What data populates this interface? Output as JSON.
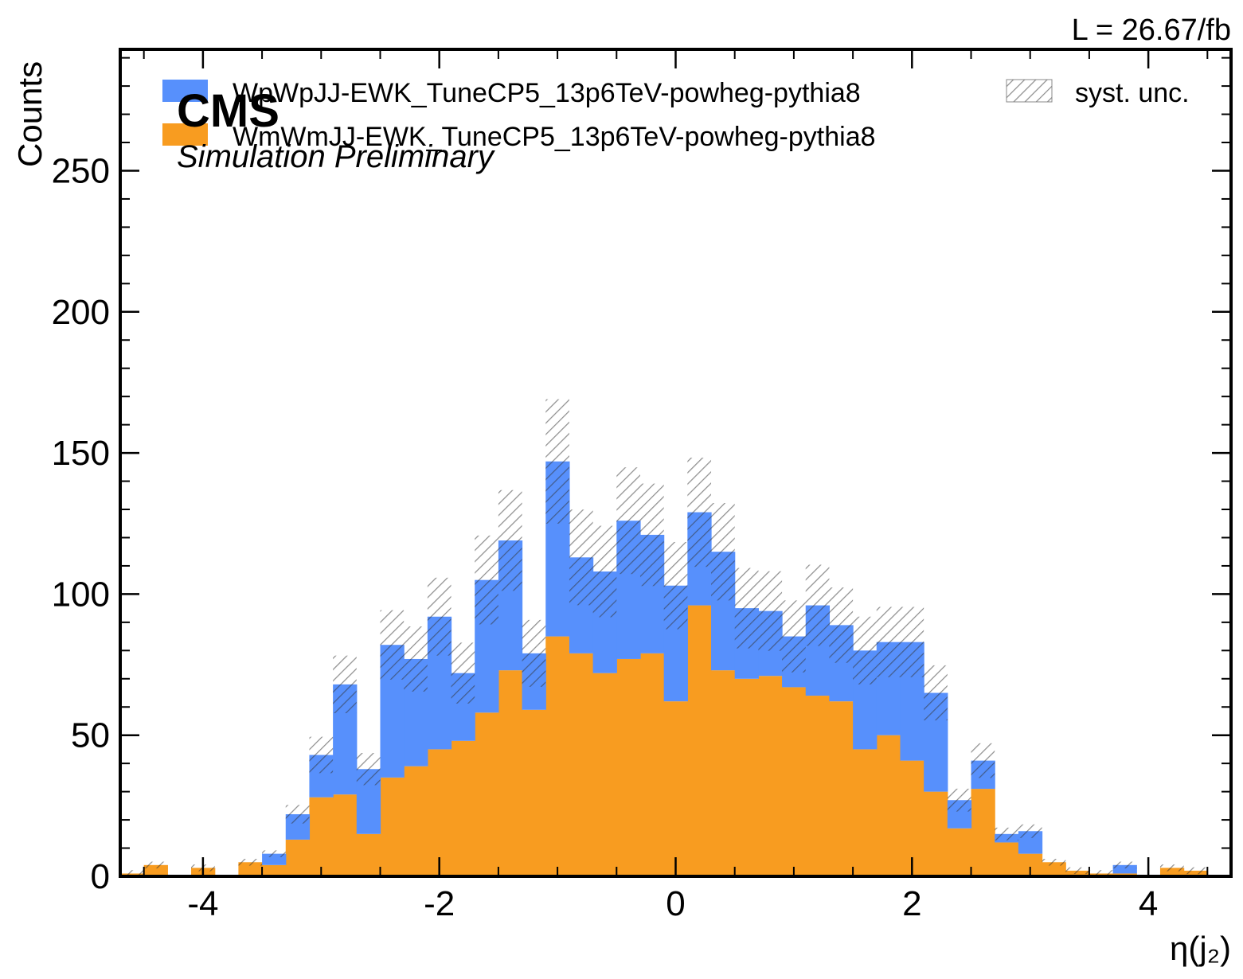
{
  "chart_data": {
    "type": "bar",
    "stacked": true,
    "histogram": true,
    "experiment_label": "CMS",
    "experiment_sublabel": "Simulation Preliminary",
    "luminosity_label": "L = 26.67/fb",
    "xlabel": "η(j₂)",
    "ylabel": "Counts",
    "xlim": [
      -4.7,
      4.7
    ],
    "ylim": [
      0,
      293
    ],
    "x_ticks": [
      -4,
      -2,
      0,
      2,
      4
    ],
    "x_tick_labels": [
      "-4",
      "-2",
      "0",
      "2",
      "4"
    ],
    "y_ticks": [
      0,
      50,
      100,
      150,
      200,
      250
    ],
    "y_tick_labels": [
      "0",
      "50",
      "100",
      "150",
      "200",
      "250"
    ],
    "bin_edges": [
      -4.7,
      -4.5,
      -4.3,
      -4.1,
      -3.9,
      -3.7,
      -3.5,
      -3.3,
      -3.1,
      -2.9,
      -2.7,
      -2.5,
      -2.3,
      -2.1,
      -1.9,
      -1.7,
      -1.5,
      -1.3,
      -1.1,
      -0.9,
      -0.7,
      -0.5,
      -0.3,
      -0.1,
      0.1,
      0.3,
      0.5,
      0.7,
      0.9,
      1.1,
      1.3,
      1.5,
      1.7,
      1.9,
      2.1,
      2.3,
      2.5,
      2.7,
      2.9,
      3.1,
      3.3,
      3.5,
      3.7,
      3.9,
      4.1,
      4.3,
      4.5,
      4.7
    ],
    "series": [
      {
        "name": "WmWmJJ-EWK_TuneCP5_13p6TeV-powheg-pythia8",
        "color": "#f89c20",
        "values": [
          1,
          4,
          0,
          3,
          0,
          5,
          4,
          13,
          28,
          29,
          15,
          35,
          39,
          45,
          48,
          58,
          73,
          59,
          85,
          79,
          72,
          77,
          79,
          62,
          96,
          73,
          70,
          71,
          67,
          64,
          62,
          45,
          50,
          41,
          30,
          17,
          31,
          12,
          8,
          5,
          2,
          1,
          1,
          0,
          3,
          2,
          0
        ]
      },
      {
        "name": "WpWpJJ-EWK_TuneCP5_13p6TeV-powheg-pythia8",
        "color": "#5790fc",
        "values": [
          0,
          0,
          0,
          0,
          0,
          0,
          4,
          9,
          15,
          39,
          23,
          47,
          38,
          47,
          24,
          47,
          46,
          20,
          62,
          34,
          36,
          49,
          42,
          41,
          33,
          42,
          25,
          23,
          18,
          32,
          27,
          35,
          33,
          42,
          35,
          10,
          10,
          3,
          8,
          0,
          0,
          0,
          3,
          0,
          0,
          0,
          0
        ]
      }
    ],
    "legend": [
      "WpWpJJ-EWK_TuneCP5_13p6TeV-powheg-pythia8",
      "WmWmJJ-EWK_TuneCP5_13p6TeV-powheg-pythia8",
      "syst. unc."
    ],
    "uncertainty": {
      "name": "syst. unc.",
      "relative": 0.15,
      "color": "#888888"
    },
    "legend_placement": "top",
    "grid": false
  }
}
